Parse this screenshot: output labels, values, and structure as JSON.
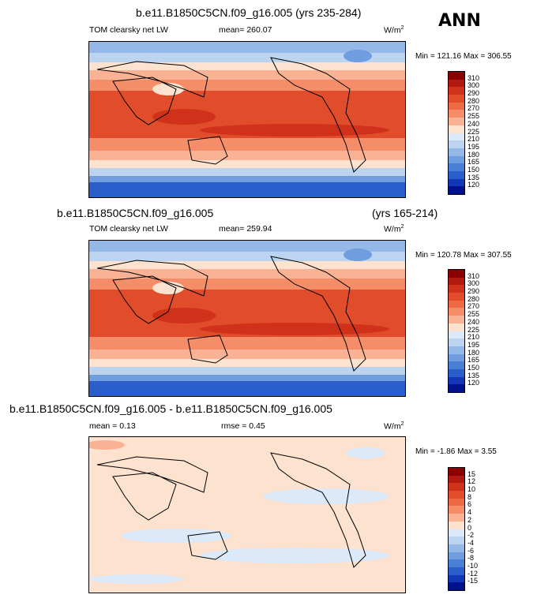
{
  "header": {
    "season": "ANN"
  },
  "panels": [
    {
      "title": "b.e11.B1850C5CN.f09_g16.005 (yrs 235-284)",
      "variable": "TOM clearsky net LW",
      "mean": "mean= 260.07",
      "units": "W/m",
      "units_exp": "2",
      "minmax": "Min = 121.16 Max = 306.55",
      "labels": [
        "310",
        "300",
        "290",
        "280",
        "270",
        "255",
        "240",
        "225",
        "210",
        "195",
        "180",
        "165",
        "150",
        "135",
        "120"
      ],
      "colors": [
        "#8b0000",
        "#b01a0f",
        "#d0311a",
        "#e14d2a",
        "#ee6a44",
        "#f58d69",
        "#f9b394",
        "#fde2cf",
        "#dce9f8",
        "#bcd4f0",
        "#94b9e8",
        "#6f9de0",
        "#4a7fd6",
        "#2a5fcb",
        "#1238b8",
        "#00118e"
      ]
    },
    {
      "title_left": "b.e11.B1850C5CN.f09_g16.005",
      "title_right": "(yrs 165-214)",
      "variable": "TOM clearsky net LW",
      "mean": "mean= 259.94",
      "units": "W/m",
      "units_exp": "2",
      "minmax": "Min = 120.78 Max = 307.55",
      "labels": [
        "310",
        "300",
        "290",
        "280",
        "270",
        "255",
        "240",
        "225",
        "210",
        "195",
        "180",
        "165",
        "150",
        "135",
        "120"
      ],
      "colors": [
        "#8b0000",
        "#b01a0f",
        "#d0311a",
        "#e14d2a",
        "#ee6a44",
        "#f58d69",
        "#f9b394",
        "#fde2cf",
        "#dce9f8",
        "#bcd4f0",
        "#94b9e8",
        "#6f9de0",
        "#4a7fd6",
        "#2a5fcb",
        "#1238b8",
        "#00118e"
      ]
    },
    {
      "title": "b.e11.B1850C5CN.f09_g16.005 - b.e11.B1850C5CN.f09_g16.005",
      "mean": "mean =  0.13",
      "rmse": "rmse =   0.45",
      "units": "W/m",
      "units_exp": "2",
      "minmax": "Min = -1.86 Max =  3.55",
      "labels": [
        "15",
        "12",
        "10",
        "8",
        "6",
        "4",
        "2",
        "0",
        "-2",
        "-4",
        "-6",
        "-8",
        "-10",
        "-12",
        "-15"
      ],
      "colors": [
        "#8b0000",
        "#b01a0f",
        "#d0311a",
        "#e14d2a",
        "#ee6a44",
        "#f58d69",
        "#f9b394",
        "#fde2cf",
        "#dce9f8",
        "#bcd4f0",
        "#94b9e8",
        "#6f9de0",
        "#4a7fd6",
        "#2a5fcb",
        "#1238b8",
        "#00118e"
      ]
    }
  ]
}
